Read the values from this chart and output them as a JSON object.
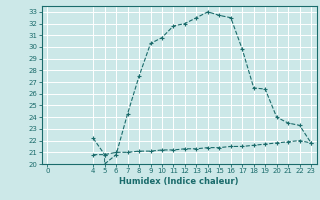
{
  "xlabel": "Humidex (Indice chaleur)",
  "ylabel": "",
  "bg_color": "#cce8e8",
  "line_color": "#1a6b6b",
  "grid_color": "#ffffff",
  "xlim": [
    -0.5,
    23.5
  ],
  "ylim": [
    20,
    33.5
  ],
  "xticks": [
    0,
    4,
    5,
    6,
    7,
    8,
    9,
    10,
    11,
    12,
    13,
    14,
    15,
    16,
    17,
    18,
    19,
    20,
    21,
    22,
    23
  ],
  "yticks": [
    20,
    21,
    22,
    23,
    24,
    25,
    26,
    27,
    28,
    29,
    30,
    31,
    32,
    33
  ],
  "curve1_x": [
    4,
    5,
    5,
    6,
    7,
    8,
    9,
    10,
    11,
    12,
    13,
    14,
    15,
    16,
    17,
    18,
    19,
    20,
    21,
    22,
    23
  ],
  "curve1_y": [
    22.2,
    20.8,
    20.0,
    20.8,
    24.3,
    27.5,
    30.3,
    30.8,
    31.8,
    32.0,
    32.5,
    33.0,
    32.7,
    32.5,
    29.8,
    26.5,
    26.4,
    24.0,
    23.5,
    23.3,
    21.8
  ],
  "curve2_x": [
    4,
    5,
    6,
    7,
    8,
    9,
    10,
    11,
    12,
    13,
    14,
    15,
    16,
    17,
    18,
    19,
    20,
    21,
    22,
    23
  ],
  "curve2_y": [
    20.8,
    20.8,
    21.0,
    21.0,
    21.1,
    21.1,
    21.2,
    21.2,
    21.3,
    21.3,
    21.4,
    21.4,
    21.5,
    21.5,
    21.6,
    21.7,
    21.8,
    21.9,
    22.0,
    21.8
  ],
  "tick_fontsize": 5.0,
  "xlabel_fontsize": 6.0
}
